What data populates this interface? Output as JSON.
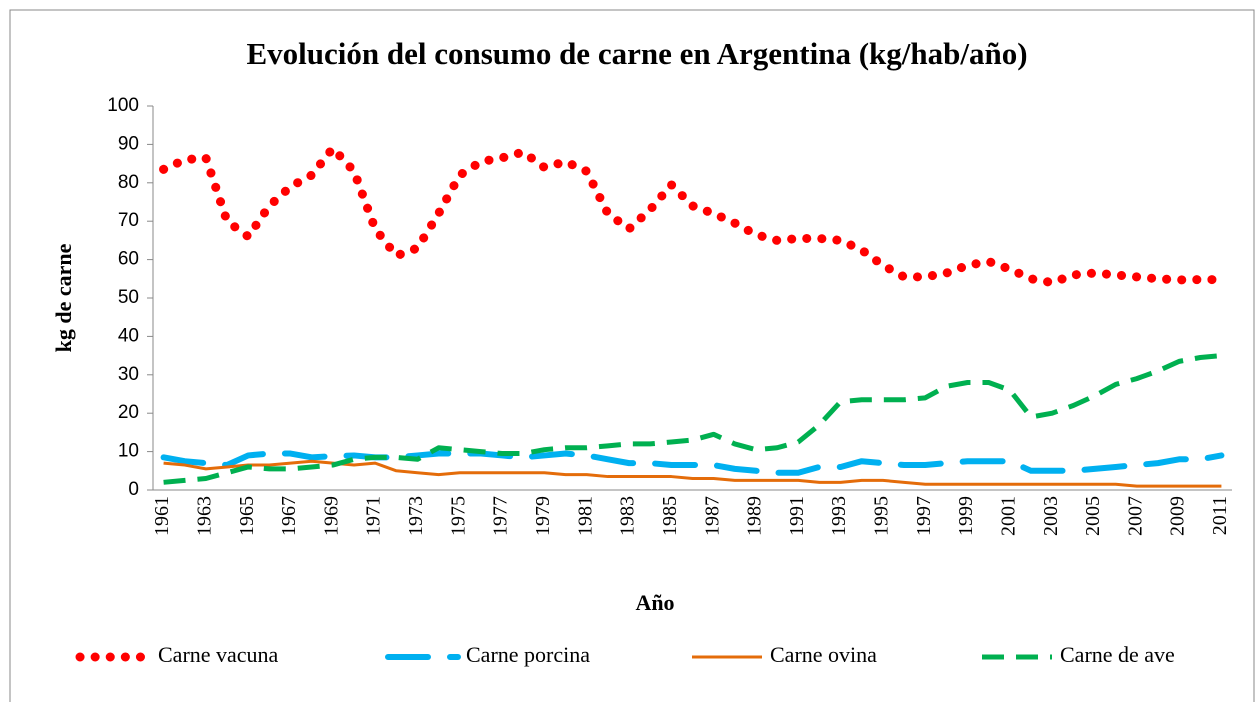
{
  "chart_data": {
    "type": "line",
    "title": "Evolución del consumo de carne en Argentina (kg/hab/año)",
    "x_label": "Año",
    "y_label": "kg de carne",
    "categories": [
      "1961",
      null,
      "1963",
      null,
      "1965",
      null,
      "1967",
      null,
      "1969",
      null,
      "1971",
      null,
      "1973",
      null,
      "1975",
      null,
      "1977",
      null,
      "1979",
      null,
      "1981",
      null,
      "1983",
      null,
      "1985",
      null,
      "1987",
      null,
      "1989",
      null,
      "1991",
      null,
      "1993",
      null,
      "1995",
      null,
      "1997",
      null,
      "1999",
      null,
      "2001",
      null,
      "2003",
      null,
      "2005",
      null,
      "2007",
      null,
      "2009",
      null,
      "2011"
    ],
    "ylim": [
      0,
      100
    ],
    "yticks": [
      0,
      10,
      20,
      30,
      40,
      50,
      60,
      70,
      80,
      90,
      100
    ],
    "grid": false,
    "legend": "bottom",
    "series": [
      {
        "name": "Carne vacuna",
        "color": "#ff0000",
        "style": "dotted",
        "values": [
          83.5,
          86,
          86.5,
          70,
          66,
          74,
          79,
          82,
          89,
          83,
          68,
          61,
          63,
          72,
          82,
          85.5,
          86.5,
          88,
          84,
          85.5,
          83,
          72,
          68,
          73,
          79.5,
          74,
          72,
          69.5,
          66.5,
          65,
          65.5,
          65.5,
          65,
          62.5,
          58.5,
          55.5,
          55.5,
          56.5,
          58.5,
          59.5,
          57.5,
          55,
          54,
          56,
          56.5,
          56,
          55.5,
          55,
          54.7,
          54.8,
          54.8
        ]
      },
      {
        "name": "Carne porcina",
        "color": "#00b0f0",
        "style": "longdash",
        "values": [
          8.5,
          7.5,
          7,
          6.5,
          9,
          9.5,
          9.5,
          8.5,
          8.8,
          9,
          8.5,
          8.5,
          9,
          9.5,
          9.5,
          9.5,
          9,
          8.5,
          9,
          9.5,
          9,
          8,
          7,
          7,
          6.5,
          6.5,
          6.5,
          5.5,
          5,
          4.5,
          4.5,
          6,
          6,
          7.5,
          7,
          6.5,
          6.5,
          7,
          7.5,
          7.5,
          7.5,
          5,
          5,
          5,
          5.5,
          6,
          6.5,
          7,
          8,
          8,
          9
        ]
      },
      {
        "name": "Carne ovina",
        "color": "#e46c0a",
        "style": "solid",
        "values": [
          7,
          6.5,
          5.5,
          6,
          6.5,
          6.5,
          7,
          7.5,
          7,
          6.5,
          7,
          5,
          4.5,
          4,
          4.5,
          4.5,
          4.5,
          4.5,
          4.5,
          4,
          4,
          3.5,
          3.5,
          3.5,
          3.5,
          3,
          3,
          2.5,
          2.5,
          2.5,
          2.5,
          2,
          2,
          2.5,
          2.5,
          2,
          1.5,
          1.5,
          1.5,
          1.5,
          1.5,
          1.5,
          1.5,
          1.5,
          1.5,
          1.5,
          1,
          1,
          1,
          1,
          1
        ]
      },
      {
        "name": "Carne de ave",
        "color": "#00b050",
        "style": "dash",
        "values": [
          2,
          2.5,
          3,
          4.5,
          6,
          5.5,
          5.5,
          6,
          6.5,
          8,
          8.5,
          8.5,
          8,
          11,
          10.5,
          10,
          9.5,
          9.5,
          10.5,
          11,
          11,
          11.5,
          12,
          12,
          12.5,
          13,
          14.5,
          12,
          10.5,
          11,
          12.5,
          17,
          23,
          23.5,
          23.5,
          23.5,
          24,
          27,
          28,
          28,
          26,
          19,
          20,
          22,
          24.5,
          27.5,
          29,
          31,
          33.5,
          34.5,
          35
        ]
      }
    ]
  }
}
